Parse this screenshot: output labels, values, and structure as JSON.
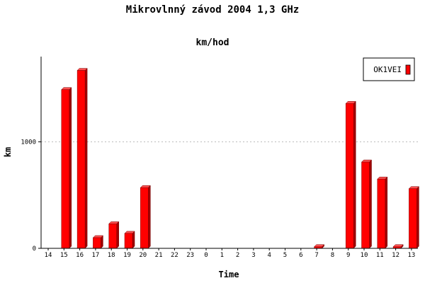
{
  "chart_data": {
    "type": "bar",
    "title": "Mikrovlnný závod 2004 1,3 GHz",
    "subtitle": "km/hod",
    "xlabel": "Time",
    "ylabel": "km",
    "categories": [
      "14",
      "15",
      "16",
      "17",
      "18",
      "19",
      "20",
      "21",
      "22",
      "23",
      "0",
      "1",
      "2",
      "3",
      "4",
      "5",
      "6",
      "7",
      "8",
      "9",
      "10",
      "11",
      "12",
      "13"
    ],
    "series": [
      {
        "name": "OK1VEI",
        "color": "#ff0000",
        "values": [
          0,
          1490,
          1670,
          100,
          230,
          140,
          570,
          0,
          0,
          0,
          0,
          0,
          0,
          0,
          0,
          0,
          0,
          15,
          0,
          1360,
          810,
          650,
          15,
          560
        ]
      }
    ],
    "ylim": [
      0,
      1800
    ],
    "yticks": [
      0,
      1000
    ],
    "grid": "horizontal-dotted",
    "legend_position": "top-right"
  }
}
